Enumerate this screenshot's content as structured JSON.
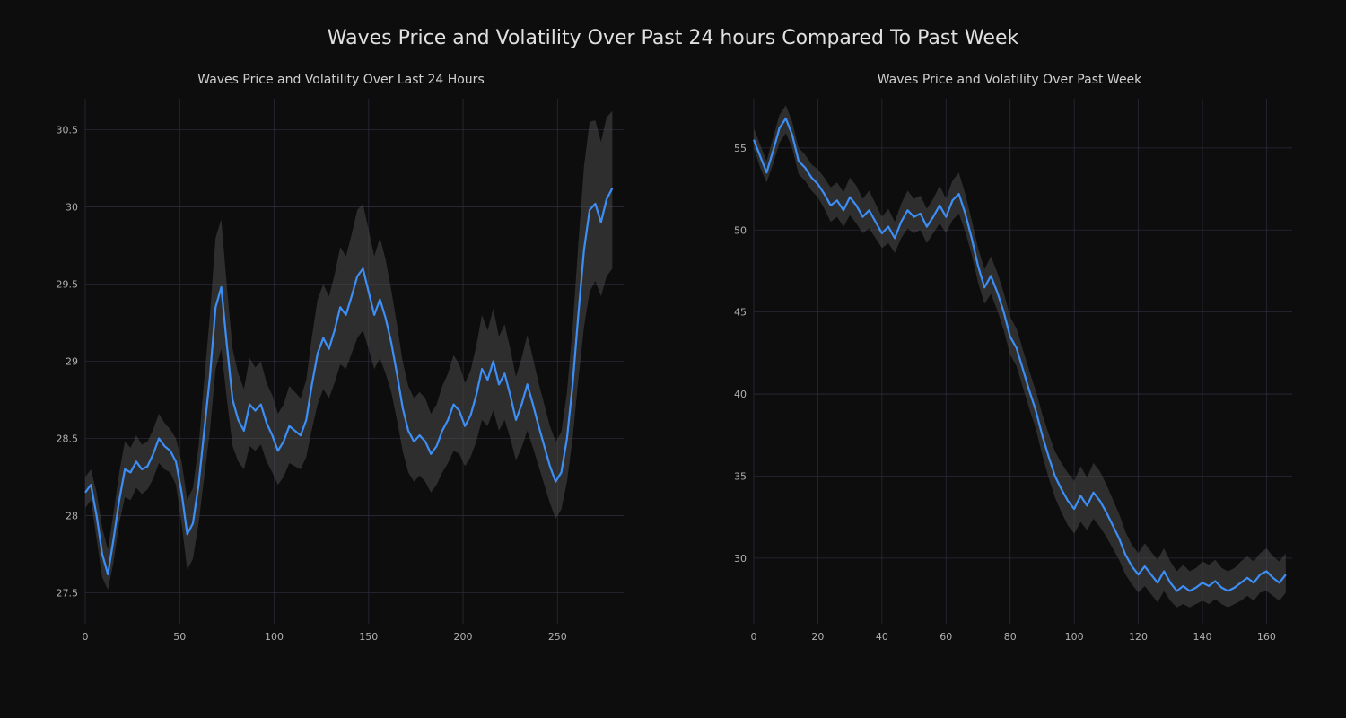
{
  "suptitle": "Waves Price and Volatility Over Past 24 hours Compared To Past Week",
  "background_color": "#0d0d0d",
  "line_color": "#3d8ff5",
  "band_color": "#4a4a4a",
  "band_opacity": 0.55,
  "grid_color": "#2a2a3a",
  "tick_color": "#b0b0b0",
  "title_color": "#d0d0d0",
  "suptitle_color": "#e0e0e0",
  "line_width": 2.2,
  "suptitle_fontsize": 22,
  "subtitle_fontsize": 14,
  "tick_fontsize": 11,
  "left_chart": {
    "type": "line",
    "title": "Waves Price and Volatility Over Last 24 Hours",
    "xlim": [
      0,
      285
    ],
    "ylim": [
      27.3,
      30.7
    ],
    "xticks": [
      0,
      50,
      100,
      150,
      200,
      250
    ],
    "yticks": [
      27.5,
      28,
      28.5,
      29,
      29.5,
      30,
      30.5
    ],
    "xtick_labels": [
      "0",
      "50",
      "100",
      "150",
      "200",
      "250"
    ],
    "ytick_labels": [
      "27.5",
      "28",
      "28.5",
      "29",
      "29.5",
      "30",
      "30.5"
    ],
    "series": [
      {
        "x": 0,
        "y": 28.15,
        "lo": 28.05,
        "hi": 28.25
      },
      {
        "x": 3,
        "y": 28.2,
        "lo": 28.1,
        "hi": 28.3
      },
      {
        "x": 6,
        "y": 28.0,
        "lo": 27.85,
        "hi": 28.15
      },
      {
        "x": 9,
        "y": 27.75,
        "lo": 27.6,
        "hi": 27.92
      },
      {
        "x": 12,
        "y": 27.62,
        "lo": 27.52,
        "hi": 27.78
      },
      {
        "x": 15,
        "y": 27.85,
        "lo": 27.7,
        "hi": 28.02
      },
      {
        "x": 18,
        "y": 28.1,
        "lo": 27.95,
        "hi": 28.28
      },
      {
        "x": 21,
        "y": 28.3,
        "lo": 28.12,
        "hi": 28.48
      },
      {
        "x": 24,
        "y": 28.28,
        "lo": 28.1,
        "hi": 28.44
      },
      {
        "x": 27,
        "y": 28.35,
        "lo": 28.18,
        "hi": 28.52
      },
      {
        "x": 30,
        "y": 28.3,
        "lo": 28.14,
        "hi": 28.46
      },
      {
        "x": 33,
        "y": 28.32,
        "lo": 28.17,
        "hi": 28.48
      },
      {
        "x": 36,
        "y": 28.4,
        "lo": 28.24,
        "hi": 28.56
      },
      {
        "x": 39,
        "y": 28.5,
        "lo": 28.34,
        "hi": 28.66
      },
      {
        "x": 42,
        "y": 28.45,
        "lo": 28.3,
        "hi": 28.6
      },
      {
        "x": 45,
        "y": 28.42,
        "lo": 28.28,
        "hi": 28.56
      },
      {
        "x": 48,
        "y": 28.35,
        "lo": 28.2,
        "hi": 28.5
      },
      {
        "x": 51,
        "y": 28.15,
        "lo": 27.95,
        "hi": 28.35
      },
      {
        "x": 54,
        "y": 27.88,
        "lo": 27.65,
        "hi": 28.1
      },
      {
        "x": 57,
        "y": 27.95,
        "lo": 27.72,
        "hi": 28.18
      },
      {
        "x": 60,
        "y": 28.2,
        "lo": 27.95,
        "hi": 28.45
      },
      {
        "x": 63,
        "y": 28.55,
        "lo": 28.25,
        "hi": 28.88
      },
      {
        "x": 66,
        "y": 28.9,
        "lo": 28.55,
        "hi": 29.3
      },
      {
        "x": 69,
        "y": 29.35,
        "lo": 28.95,
        "hi": 29.8
      },
      {
        "x": 72,
        "y": 29.48,
        "lo": 29.08,
        "hi": 29.92
      },
      {
        "x": 75,
        "y": 29.1,
        "lo": 28.75,
        "hi": 29.48
      },
      {
        "x": 78,
        "y": 28.75,
        "lo": 28.45,
        "hi": 29.08
      },
      {
        "x": 81,
        "y": 28.62,
        "lo": 28.35,
        "hi": 28.92
      },
      {
        "x": 84,
        "y": 28.55,
        "lo": 28.3,
        "hi": 28.82
      },
      {
        "x": 87,
        "y": 28.72,
        "lo": 28.45,
        "hi": 29.02
      },
      {
        "x": 90,
        "y": 28.68,
        "lo": 28.42,
        "hi": 28.96
      },
      {
        "x": 93,
        "y": 28.72,
        "lo": 28.46,
        "hi": 29.0
      },
      {
        "x": 96,
        "y": 28.6,
        "lo": 28.35,
        "hi": 28.86
      },
      {
        "x": 99,
        "y": 28.52,
        "lo": 28.28,
        "hi": 28.78
      },
      {
        "x": 102,
        "y": 28.42,
        "lo": 28.2,
        "hi": 28.66
      },
      {
        "x": 105,
        "y": 28.48,
        "lo": 28.25,
        "hi": 28.72
      },
      {
        "x": 108,
        "y": 28.58,
        "lo": 28.34,
        "hi": 28.84
      },
      {
        "x": 111,
        "y": 28.55,
        "lo": 28.32,
        "hi": 28.8
      },
      {
        "x": 114,
        "y": 28.52,
        "lo": 28.3,
        "hi": 28.76
      },
      {
        "x": 117,
        "y": 28.62,
        "lo": 28.38,
        "hi": 28.88
      },
      {
        "x": 120,
        "y": 28.85,
        "lo": 28.56,
        "hi": 29.16
      },
      {
        "x": 123,
        "y": 29.05,
        "lo": 28.72,
        "hi": 29.4
      },
      {
        "x": 126,
        "y": 29.15,
        "lo": 28.82,
        "hi": 29.5
      },
      {
        "x": 129,
        "y": 29.08,
        "lo": 28.76,
        "hi": 29.42
      },
      {
        "x": 132,
        "y": 29.2,
        "lo": 28.86,
        "hi": 29.56
      },
      {
        "x": 135,
        "y": 29.35,
        "lo": 28.98,
        "hi": 29.74
      },
      {
        "x": 138,
        "y": 29.3,
        "lo": 28.95,
        "hi": 29.68
      },
      {
        "x": 141,
        "y": 29.42,
        "lo": 29.05,
        "hi": 29.82
      },
      {
        "x": 144,
        "y": 29.55,
        "lo": 29.15,
        "hi": 29.98
      },
      {
        "x": 147,
        "y": 29.6,
        "lo": 29.2,
        "hi": 30.02
      },
      {
        "x": 150,
        "y": 29.45,
        "lo": 29.08,
        "hi": 29.85
      },
      {
        "x": 153,
        "y": 29.3,
        "lo": 28.95,
        "hi": 29.68
      },
      {
        "x": 156,
        "y": 29.4,
        "lo": 29.02,
        "hi": 29.8
      },
      {
        "x": 159,
        "y": 29.28,
        "lo": 28.92,
        "hi": 29.66
      },
      {
        "x": 162,
        "y": 29.12,
        "lo": 28.8,
        "hi": 29.46
      },
      {
        "x": 165,
        "y": 28.92,
        "lo": 28.62,
        "hi": 29.24
      },
      {
        "x": 168,
        "y": 28.7,
        "lo": 28.42,
        "hi": 29.0
      },
      {
        "x": 171,
        "y": 28.55,
        "lo": 28.28,
        "hi": 28.84
      },
      {
        "x": 174,
        "y": 28.48,
        "lo": 28.22,
        "hi": 28.76
      },
      {
        "x": 177,
        "y": 28.52,
        "lo": 28.26,
        "hi": 28.8
      },
      {
        "x": 180,
        "y": 28.48,
        "lo": 28.22,
        "hi": 28.76
      },
      {
        "x": 183,
        "y": 28.4,
        "lo": 28.15,
        "hi": 28.66
      },
      {
        "x": 186,
        "y": 28.45,
        "lo": 28.2,
        "hi": 28.72
      },
      {
        "x": 189,
        "y": 28.55,
        "lo": 28.28,
        "hi": 28.84
      },
      {
        "x": 192,
        "y": 28.62,
        "lo": 28.34,
        "hi": 28.92
      },
      {
        "x": 195,
        "y": 28.72,
        "lo": 28.42,
        "hi": 29.04
      },
      {
        "x": 198,
        "y": 28.68,
        "lo": 28.4,
        "hi": 28.98
      },
      {
        "x": 201,
        "y": 28.58,
        "lo": 28.32,
        "hi": 28.86
      },
      {
        "x": 204,
        "y": 28.65,
        "lo": 28.38,
        "hi": 28.94
      },
      {
        "x": 207,
        "y": 28.78,
        "lo": 28.48,
        "hi": 29.1
      },
      {
        "x": 210,
        "y": 28.95,
        "lo": 28.62,
        "hi": 29.3
      },
      {
        "x": 213,
        "y": 28.88,
        "lo": 28.58,
        "hi": 29.2
      },
      {
        "x": 216,
        "y": 29.0,
        "lo": 28.68,
        "hi": 29.34
      },
      {
        "x": 219,
        "y": 28.85,
        "lo": 28.55,
        "hi": 29.16
      },
      {
        "x": 222,
        "y": 28.92,
        "lo": 28.62,
        "hi": 29.24
      },
      {
        "x": 225,
        "y": 28.78,
        "lo": 28.5,
        "hi": 29.08
      },
      {
        "x": 228,
        "y": 28.62,
        "lo": 28.36,
        "hi": 28.9
      },
      {
        "x": 231,
        "y": 28.72,
        "lo": 28.44,
        "hi": 29.02
      },
      {
        "x": 234,
        "y": 28.85,
        "lo": 28.55,
        "hi": 29.17
      },
      {
        "x": 237,
        "y": 28.72,
        "lo": 28.44,
        "hi": 29.02
      },
      {
        "x": 240,
        "y": 28.58,
        "lo": 28.32,
        "hi": 28.86
      },
      {
        "x": 243,
        "y": 28.45,
        "lo": 28.2,
        "hi": 28.72
      },
      {
        "x": 246,
        "y": 28.32,
        "lo": 28.08,
        "hi": 28.58
      },
      {
        "x": 249,
        "y": 28.22,
        "lo": 27.98,
        "hi": 28.48
      },
      {
        "x": 252,
        "y": 28.28,
        "lo": 28.04,
        "hi": 28.54
      },
      {
        "x": 255,
        "y": 28.5,
        "lo": 28.22,
        "hi": 28.8
      },
      {
        "x": 258,
        "y": 28.85,
        "lo": 28.5,
        "hi": 29.22
      },
      {
        "x": 261,
        "y": 29.3,
        "lo": 28.88,
        "hi": 29.76
      },
      {
        "x": 264,
        "y": 29.72,
        "lo": 29.22,
        "hi": 30.26
      },
      {
        "x": 267,
        "y": 29.98,
        "lo": 29.45,
        "hi": 30.55
      },
      {
        "x": 270,
        "y": 30.02,
        "lo": 29.52,
        "hi": 30.56
      },
      {
        "x": 273,
        "y": 29.9,
        "lo": 29.42,
        "hi": 30.42
      },
      {
        "x": 276,
        "y": 30.05,
        "lo": 29.55,
        "hi": 30.58
      },
      {
        "x": 279,
        "y": 30.12,
        "lo": 29.6,
        "hi": 30.62
      }
    ]
  },
  "right_chart": {
    "type": "line",
    "title": "Waves Price and Volatility Over Past Week",
    "xlim": [
      0,
      168
    ],
    "ylim": [
      26,
      58
    ],
    "xticks": [
      0,
      20,
      40,
      60,
      80,
      100,
      120,
      140,
      160
    ],
    "yticks": [
      30,
      35,
      40,
      45,
      50,
      55
    ],
    "xtick_labels": [
      "0",
      "20",
      "40",
      "60",
      "80",
      "100",
      "120",
      "140",
      "160"
    ],
    "ytick_labels": [
      "30",
      "35",
      "40",
      "45",
      "50",
      "55"
    ],
    "series": [
      {
        "x": 0,
        "y": 55.5,
        "lo": 55.0,
        "hi": 56.2
      },
      {
        "x": 2,
        "y": 54.5,
        "lo": 53.8,
        "hi": 55.2
      },
      {
        "x": 4,
        "y": 53.5,
        "lo": 52.9,
        "hi": 54.2
      },
      {
        "x": 6,
        "y": 54.8,
        "lo": 54.0,
        "hi": 55.6
      },
      {
        "x": 8,
        "y": 56.2,
        "lo": 55.3,
        "hi": 57.0
      },
      {
        "x": 10,
        "y": 56.8,
        "lo": 55.9,
        "hi": 57.6
      },
      {
        "x": 12,
        "y": 55.8,
        "lo": 55.0,
        "hi": 56.6
      },
      {
        "x": 14,
        "y": 54.2,
        "lo": 53.4,
        "hi": 55.0
      },
      {
        "x": 16,
        "y": 53.8,
        "lo": 53.0,
        "hi": 54.6
      },
      {
        "x": 18,
        "y": 53.2,
        "lo": 52.4,
        "hi": 54.0
      },
      {
        "x": 20,
        "y": 52.8,
        "lo": 52.0,
        "hi": 53.7
      },
      {
        "x": 22,
        "y": 52.2,
        "lo": 51.3,
        "hi": 53.2
      },
      {
        "x": 24,
        "y": 51.5,
        "lo": 50.5,
        "hi": 52.6
      },
      {
        "x": 26,
        "y": 51.8,
        "lo": 50.8,
        "hi": 52.9
      },
      {
        "x": 28,
        "y": 51.2,
        "lo": 50.2,
        "hi": 52.3
      },
      {
        "x": 30,
        "y": 52.0,
        "lo": 50.9,
        "hi": 53.2
      },
      {
        "x": 32,
        "y": 51.5,
        "lo": 50.4,
        "hi": 52.7
      },
      {
        "x": 34,
        "y": 50.8,
        "lo": 49.8,
        "hi": 51.9
      },
      {
        "x": 36,
        "y": 51.2,
        "lo": 50.1,
        "hi": 52.4
      },
      {
        "x": 38,
        "y": 50.5,
        "lo": 49.5,
        "hi": 51.6
      },
      {
        "x": 40,
        "y": 49.8,
        "lo": 48.9,
        "hi": 50.8
      },
      {
        "x": 42,
        "y": 50.2,
        "lo": 49.2,
        "hi": 51.3
      },
      {
        "x": 44,
        "y": 49.5,
        "lo": 48.6,
        "hi": 50.5
      },
      {
        "x": 46,
        "y": 50.5,
        "lo": 49.5,
        "hi": 51.6
      },
      {
        "x": 48,
        "y": 51.2,
        "lo": 50.1,
        "hi": 52.4
      },
      {
        "x": 50,
        "y": 50.8,
        "lo": 49.8,
        "hi": 51.9
      },
      {
        "x": 52,
        "y": 51.0,
        "lo": 50.0,
        "hi": 52.1
      },
      {
        "x": 54,
        "y": 50.2,
        "lo": 49.2,
        "hi": 51.3
      },
      {
        "x": 56,
        "y": 50.8,
        "lo": 49.8,
        "hi": 51.9
      },
      {
        "x": 58,
        "y": 51.5,
        "lo": 50.4,
        "hi": 52.7
      },
      {
        "x": 60,
        "y": 50.8,
        "lo": 49.8,
        "hi": 51.9
      },
      {
        "x": 62,
        "y": 51.8,
        "lo": 50.6,
        "hi": 53.0
      },
      {
        "x": 64,
        "y": 52.2,
        "lo": 51.0,
        "hi": 53.5
      },
      {
        "x": 66,
        "y": 51.0,
        "lo": 49.9,
        "hi": 52.2
      },
      {
        "x": 68,
        "y": 49.5,
        "lo": 48.5,
        "hi": 50.6
      },
      {
        "x": 70,
        "y": 47.8,
        "lo": 46.8,
        "hi": 48.9
      },
      {
        "x": 72,
        "y": 46.5,
        "lo": 45.5,
        "hi": 47.6
      },
      {
        "x": 74,
        "y": 47.2,
        "lo": 46.1,
        "hi": 48.4
      },
      {
        "x": 76,
        "y": 46.2,
        "lo": 45.1,
        "hi": 47.4
      },
      {
        "x": 78,
        "y": 45.0,
        "lo": 43.9,
        "hi": 46.2
      },
      {
        "x": 80,
        "y": 43.5,
        "lo": 42.4,
        "hi": 44.7
      },
      {
        "x": 82,
        "y": 42.8,
        "lo": 41.7,
        "hi": 44.0
      },
      {
        "x": 84,
        "y": 41.5,
        "lo": 40.4,
        "hi": 42.7
      },
      {
        "x": 86,
        "y": 40.2,
        "lo": 39.1,
        "hi": 41.4
      },
      {
        "x": 88,
        "y": 39.0,
        "lo": 37.9,
        "hi": 40.2
      },
      {
        "x": 90,
        "y": 37.5,
        "lo": 36.3,
        "hi": 38.8
      },
      {
        "x": 92,
        "y": 36.2,
        "lo": 34.9,
        "hi": 37.6
      },
      {
        "x": 94,
        "y": 35.0,
        "lo": 33.7,
        "hi": 36.5
      },
      {
        "x": 96,
        "y": 34.2,
        "lo": 32.8,
        "hi": 35.8
      },
      {
        "x": 98,
        "y": 33.5,
        "lo": 32.0,
        "hi": 35.2
      },
      {
        "x": 100,
        "y": 33.0,
        "lo": 31.5,
        "hi": 34.7
      },
      {
        "x": 102,
        "y": 33.8,
        "lo": 32.2,
        "hi": 35.6
      },
      {
        "x": 104,
        "y": 33.2,
        "lo": 31.7,
        "hi": 34.9
      },
      {
        "x": 106,
        "y": 34.0,
        "lo": 32.4,
        "hi": 35.8
      },
      {
        "x": 108,
        "y": 33.5,
        "lo": 31.9,
        "hi": 35.3
      },
      {
        "x": 110,
        "y": 32.8,
        "lo": 31.3,
        "hi": 34.5
      },
      {
        "x": 112,
        "y": 32.0,
        "lo": 30.6,
        "hi": 33.6
      },
      {
        "x": 114,
        "y": 31.2,
        "lo": 29.9,
        "hi": 32.7
      },
      {
        "x": 116,
        "y": 30.2,
        "lo": 29.0,
        "hi": 31.6
      },
      {
        "x": 118,
        "y": 29.5,
        "lo": 28.4,
        "hi": 30.8
      },
      {
        "x": 120,
        "y": 29.0,
        "lo": 27.9,
        "hi": 30.3
      },
      {
        "x": 122,
        "y": 29.5,
        "lo": 28.3,
        "hi": 30.9
      },
      {
        "x": 124,
        "y": 29.0,
        "lo": 27.8,
        "hi": 30.4
      },
      {
        "x": 126,
        "y": 28.5,
        "lo": 27.3,
        "hi": 29.9
      },
      {
        "x": 128,
        "y": 29.2,
        "lo": 28.0,
        "hi": 30.6
      },
      {
        "x": 130,
        "y": 28.5,
        "lo": 27.4,
        "hi": 29.8
      },
      {
        "x": 132,
        "y": 28.0,
        "lo": 27.0,
        "hi": 29.2
      },
      {
        "x": 134,
        "y": 28.3,
        "lo": 27.2,
        "hi": 29.6
      },
      {
        "x": 136,
        "y": 28.0,
        "lo": 27.0,
        "hi": 29.2
      },
      {
        "x": 138,
        "y": 28.2,
        "lo": 27.2,
        "hi": 29.4
      },
      {
        "x": 140,
        "y": 28.5,
        "lo": 27.4,
        "hi": 29.8
      },
      {
        "x": 142,
        "y": 28.3,
        "lo": 27.2,
        "hi": 29.6
      },
      {
        "x": 144,
        "y": 28.6,
        "lo": 27.5,
        "hi": 29.9
      },
      {
        "x": 146,
        "y": 28.2,
        "lo": 27.2,
        "hi": 29.4
      },
      {
        "x": 148,
        "y": 28.0,
        "lo": 27.0,
        "hi": 29.2
      },
      {
        "x": 150,
        "y": 28.2,
        "lo": 27.2,
        "hi": 29.4
      },
      {
        "x": 152,
        "y": 28.5,
        "lo": 27.4,
        "hi": 29.8
      },
      {
        "x": 154,
        "y": 28.8,
        "lo": 27.7,
        "hi": 30.1
      },
      {
        "x": 156,
        "y": 28.5,
        "lo": 27.4,
        "hi": 29.8
      },
      {
        "x": 158,
        "y": 29.0,
        "lo": 27.9,
        "hi": 30.3
      },
      {
        "x": 160,
        "y": 29.2,
        "lo": 28.0,
        "hi": 30.6
      },
      {
        "x": 162,
        "y": 28.8,
        "lo": 27.7,
        "hi": 30.1
      },
      {
        "x": 164,
        "y": 28.5,
        "lo": 27.4,
        "hi": 29.8
      },
      {
        "x": 166,
        "y": 29.0,
        "lo": 27.9,
        "hi": 30.3
      }
    ]
  }
}
